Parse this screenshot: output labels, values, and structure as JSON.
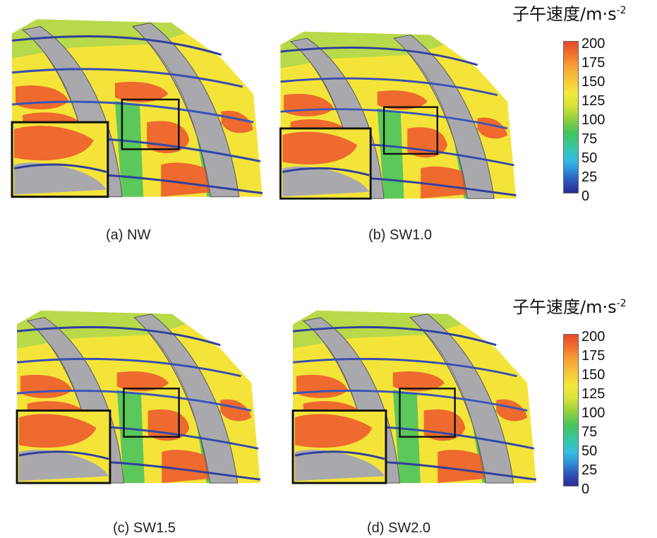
{
  "panels": [
    {
      "caption": "(a)  NW"
    },
    {
      "caption": "(b) SW1.0"
    },
    {
      "caption": "(c) SW1.5"
    },
    {
      "caption": "(d) SW2.0"
    }
  ],
  "legend": {
    "title": "子午速度/m·s",
    "exponent": "-2",
    "ticks": [
      "200",
      "175",
      "150",
      "125",
      "100",
      "75",
      "50",
      "25",
      "0"
    ],
    "colors": [
      "#e84a2c",
      "#ef6a2f",
      "#f59b34",
      "#f4e83c",
      "#9bd33d",
      "#46c35a",
      "#35bde0",
      "#2e4fb8",
      "#2b2c8e"
    ]
  }
}
